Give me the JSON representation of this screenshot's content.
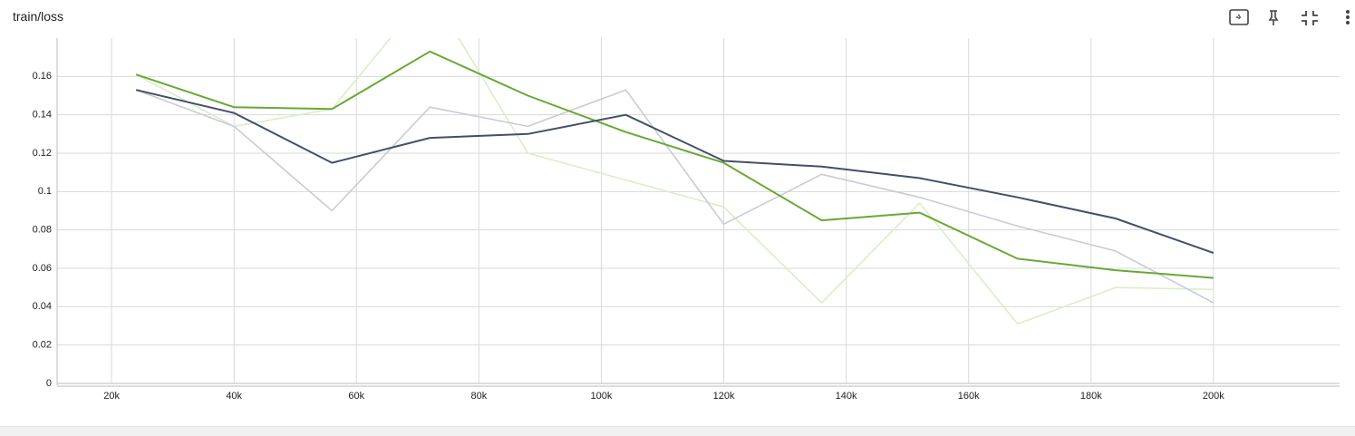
{
  "chart_data": {
    "type": "line",
    "title": "train/loss",
    "x": [
      24000,
      40000,
      56000,
      72000,
      88000,
      104000,
      120000,
      136000,
      152000,
      168000,
      184000,
      200000
    ],
    "series": [
      {
        "color": "#dcedc8",
        "values": [
          0.161,
          0.134,
          0.143,
          0.205,
          0.12,
          0.106,
          0.092,
          0.042,
          0.094,
          0.031,
          0.05,
          0.049
        ]
      },
      {
        "color": "#c9cbd8",
        "values": [
          0.153,
          0.134,
          0.09,
          0.144,
          0.134,
          0.153,
          0.083,
          0.109,
          0.097,
          0.082,
          0.069,
          0.042
        ]
      },
      {
        "color": "#6aa835",
        "values": [
          0.161,
          0.144,
          0.143,
          0.173,
          0.15,
          0.131,
          0.115,
          0.085,
          0.089,
          0.065,
          0.059,
          0.055
        ]
      },
      {
        "color": "#425066",
        "values": [
          0.153,
          0.141,
          0.115,
          0.128,
          0.13,
          0.14,
          0.116,
          0.113,
          0.107,
          0.097,
          0.086,
          0.068
        ]
      }
    ],
    "xlim": [
      11100,
      220600
    ],
    "xticks": [
      {
        "value": 20000,
        "label": "20k"
      },
      {
        "value": 40000,
        "label": "40k"
      },
      {
        "value": 60000,
        "label": "60k"
      },
      {
        "value": 80000,
        "label": "80k"
      },
      {
        "value": 100000,
        "label": "100k"
      },
      {
        "value": 120000,
        "label": "120k"
      },
      {
        "value": 140000,
        "label": "140k"
      },
      {
        "value": 160000,
        "label": "160k"
      },
      {
        "value": 180000,
        "label": "180k"
      },
      {
        "value": 200000,
        "label": "200k"
      }
    ],
    "ylim": [
      0,
      0.18
    ],
    "yticks": [
      0,
      0.02,
      0.04,
      0.06,
      0.08,
      0.1,
      0.12,
      0.14,
      0.16
    ],
    "grid": true
  }
}
